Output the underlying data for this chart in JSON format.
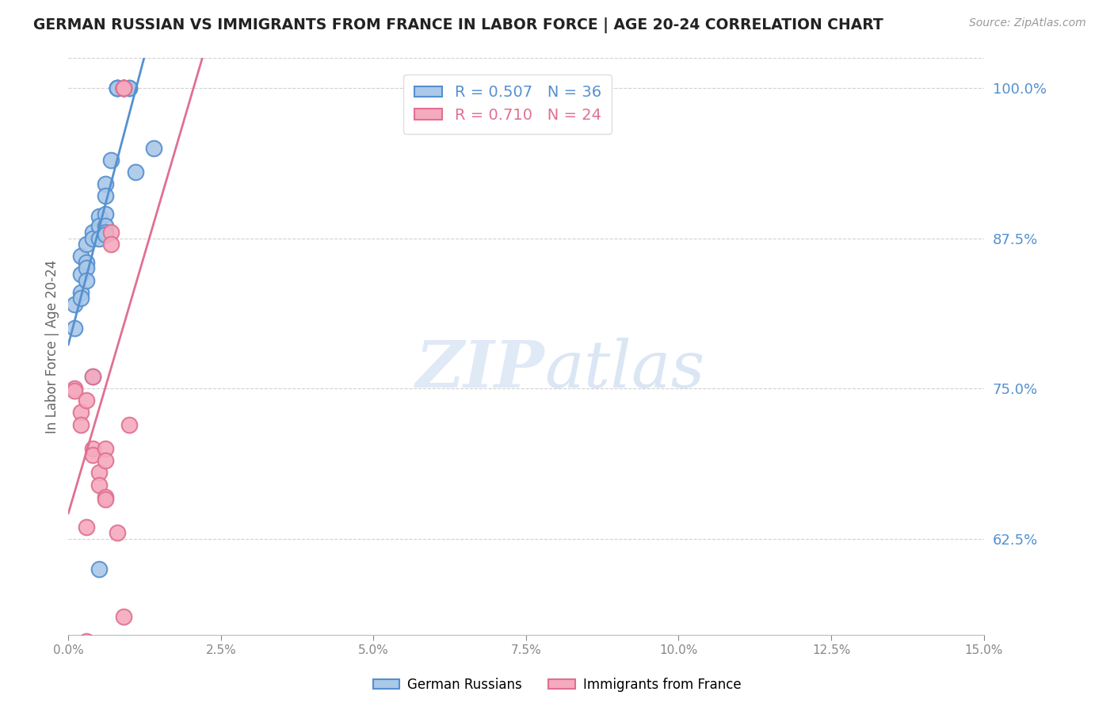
{
  "title": "GERMAN RUSSIAN VS IMMIGRANTS FROM FRANCE IN LABOR FORCE | AGE 20-24 CORRELATION CHART",
  "source": "Source: ZipAtlas.com",
  "ylabel": "In Labor Force | Age 20-24",
  "xlim": [
    0.0,
    0.15
  ],
  "ylim": [
    0.545,
    1.025
  ],
  "yticks": [
    0.625,
    0.75,
    0.875,
    1.0
  ],
  "ytick_labels": [
    "62.5%",
    "75.0%",
    "87.5%",
    "100.0%"
  ],
  "xticks": [
    0.0,
    0.025,
    0.05,
    0.075,
    0.1,
    0.125,
    0.15
  ],
  "xtick_labels": [
    "0.0%",
    "2.5%",
    "5.0%",
    "7.5%",
    "10.0%",
    "12.5%",
    "15.0%"
  ],
  "blue_scatter": [
    [
      0.001,
      0.82
    ],
    [
      0.001,
      0.8
    ],
    [
      0.002,
      0.86
    ],
    [
      0.002,
      0.845
    ],
    [
      0.002,
      0.83
    ],
    [
      0.002,
      0.825
    ],
    [
      0.003,
      0.87
    ],
    [
      0.003,
      0.855
    ],
    [
      0.003,
      0.85
    ],
    [
      0.003,
      0.84
    ],
    [
      0.004,
      0.88
    ],
    [
      0.004,
      0.875
    ],
    [
      0.004,
      0.76
    ],
    [
      0.005,
      0.893
    ],
    [
      0.005,
      0.885
    ],
    [
      0.005,
      0.875
    ],
    [
      0.005,
      0.6
    ],
    [
      0.006,
      0.92
    ],
    [
      0.006,
      0.91
    ],
    [
      0.006,
      0.895
    ],
    [
      0.006,
      0.885
    ],
    [
      0.006,
      0.88
    ],
    [
      0.006,
      0.878
    ],
    [
      0.007,
      0.94
    ],
    [
      0.008,
      1.0
    ],
    [
      0.008,
      1.0
    ],
    [
      0.008,
      1.0
    ],
    [
      0.008,
      1.0
    ],
    [
      0.009,
      1.0
    ],
    [
      0.009,
      1.0
    ],
    [
      0.009,
      1.0
    ],
    [
      0.009,
      1.0
    ],
    [
      0.01,
      1.0
    ],
    [
      0.01,
      1.0
    ],
    [
      0.011,
      0.93
    ],
    [
      0.014,
      0.95
    ]
  ],
  "pink_scatter": [
    [
      0.001,
      0.75
    ],
    [
      0.001,
      0.748
    ],
    [
      0.002,
      0.73
    ],
    [
      0.002,
      0.72
    ],
    [
      0.003,
      0.74
    ],
    [
      0.003,
      0.54
    ],
    [
      0.004,
      0.76
    ],
    [
      0.004,
      0.7
    ],
    [
      0.004,
      0.695
    ],
    [
      0.005,
      0.68
    ],
    [
      0.005,
      0.67
    ],
    [
      0.006,
      0.7
    ],
    [
      0.006,
      0.69
    ],
    [
      0.006,
      0.66
    ],
    [
      0.006,
      0.658
    ],
    [
      0.007,
      0.88
    ],
    [
      0.007,
      0.87
    ],
    [
      0.008,
      0.63
    ],
    [
      0.009,
      1.0
    ],
    [
      0.009,
      1.0
    ],
    [
      0.009,
      1.0
    ],
    [
      0.01,
      0.72
    ],
    [
      0.003,
      0.635
    ],
    [
      0.009,
      0.56
    ]
  ],
  "blue_color": "#aac8e8",
  "pink_color": "#f5aabe",
  "blue_line_color": "#5590d0",
  "pink_line_color": "#e07090",
  "blue_R": 0.507,
  "blue_N": 36,
  "pink_R": 0.71,
  "pink_N": 24,
  "legend_label_blue": "German Russians",
  "legend_label_pink": "Immigrants from France",
  "watermark_zip": "ZIP",
  "watermark_atlas": "atlas",
  "background_color": "#ffffff",
  "grid_color": "#cccccc"
}
